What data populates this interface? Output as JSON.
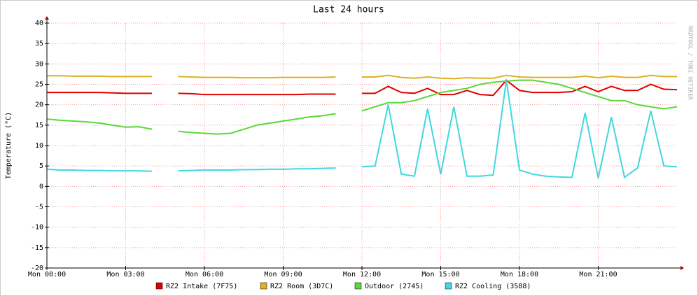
{
  "chart_data": {
    "type": "line",
    "title": "Last 24 hours",
    "y_label": "Temperature (°C)",
    "watermark": "RRDTOOL / TOBI OETIKER",
    "grid": true,
    "x": [
      0,
      0.5,
      1,
      1.5,
      2,
      2.5,
      3,
      3.5,
      4,
      4.5,
      5,
      5.5,
      6,
      6.5,
      7,
      7.5,
      8,
      8.5,
      9,
      9.5,
      10,
      10.5,
      11,
      11.5,
      12,
      12.5,
      13,
      13.5,
      14,
      14.5,
      15,
      15.5,
      16,
      16.5,
      17,
      17.5,
      18,
      18.5,
      19,
      19.5,
      20,
      20.5,
      21,
      21.5,
      22,
      22.5,
      23,
      23.5,
      24
    ],
    "xlim": [
      0,
      24
    ],
    "xticks": [
      {
        "value": 0,
        "label": "Mon 00:00"
      },
      {
        "value": 3,
        "label": "Mon 03:00"
      },
      {
        "value": 6,
        "label": "Mon 06:00"
      },
      {
        "value": 9,
        "label": "Mon 09:00"
      },
      {
        "value": 12,
        "label": "Mon 12:00"
      },
      {
        "value": 15,
        "label": "Mon 15:00"
      },
      {
        "value": 18,
        "label": "Mon 18:00"
      },
      {
        "value": 21,
        "label": "Mon 21:00"
      }
    ],
    "ylim": [
      -20,
      40
    ],
    "yticks": [
      -20,
      -15,
      -10,
      -5,
      0,
      5,
      10,
      15,
      20,
      25,
      30,
      35,
      40
    ],
    "series": [
      {
        "name": "RZ2 Intake (7F75)",
        "color": "#e00000",
        "values": [
          23,
          23,
          23,
          23,
          23,
          22.9,
          22.8,
          22.8,
          22.8,
          null,
          22.8,
          22.7,
          22.5,
          22.5,
          22.5,
          22.5,
          22.5,
          22.5,
          22.5,
          22.5,
          22.6,
          22.6,
          22.6,
          null,
          22.8,
          22.8,
          24.5,
          23,
          22.8,
          24,
          22.5,
          22.5,
          23.5,
          22.5,
          22.3,
          26,
          23.5,
          23,
          23,
          23,
          23.2,
          24.5,
          23.2,
          24.5,
          23.5,
          23.5,
          25,
          23.8,
          23.7
        ]
      },
      {
        "name": "RZ2 Room (3D7C)",
        "color": "#e0b020",
        "values": [
          27.1,
          27.1,
          27,
          27,
          27,
          26.9,
          26.9,
          26.9,
          26.9,
          null,
          26.9,
          26.8,
          26.7,
          26.7,
          26.7,
          26.6,
          26.6,
          26.6,
          26.7,
          26.7,
          26.7,
          26.7,
          26.8,
          null,
          26.8,
          26.8,
          27.2,
          26.7,
          26.5,
          26.8,
          26.5,
          26.4,
          26.6,
          26.5,
          26.5,
          27.2,
          26.8,
          26.7,
          26.7,
          26.7,
          26.7,
          27,
          26.6,
          27,
          26.7,
          26.7,
          27.2,
          26.9,
          26.9
        ]
      },
      {
        "name": "Outdoor (2745)",
        "color": "#5ad83a",
        "values": [
          16.5,
          16.2,
          16,
          15.8,
          15.5,
          15,
          14.5,
          14.6,
          14,
          null,
          13.5,
          13.2,
          13,
          12.8,
          13,
          14,
          15,
          15.5,
          16,
          16.5,
          17,
          17.3,
          17.8,
          null,
          18.5,
          19.5,
          20.5,
          20.5,
          21,
          22,
          23,
          23.5,
          24,
          25,
          25.5,
          25.8,
          26,
          26,
          25.5,
          25,
          24,
          23,
          22,
          21,
          21,
          20,
          19.5,
          19,
          19.5
        ]
      },
      {
        "name": "RZ2 Cooling (3588)",
        "color": "#40d8e0",
        "values": [
          4.2,
          4,
          4,
          3.9,
          3.9,
          3.8,
          3.8,
          3.8,
          3.7,
          null,
          3.8,
          3.9,
          4,
          4,
          4,
          4.1,
          4.1,
          4.2,
          4.2,
          4.3,
          4.3,
          4.4,
          4.5,
          null,
          4.8,
          5,
          20,
          3,
          2.5,
          19,
          3,
          19.5,
          2.5,
          2.5,
          2.8,
          26,
          4,
          3,
          2.5,
          2.3,
          2.2,
          18,
          2,
          17,
          2.2,
          4.5,
          18.5,
          5,
          4.8
        ]
      }
    ]
  }
}
